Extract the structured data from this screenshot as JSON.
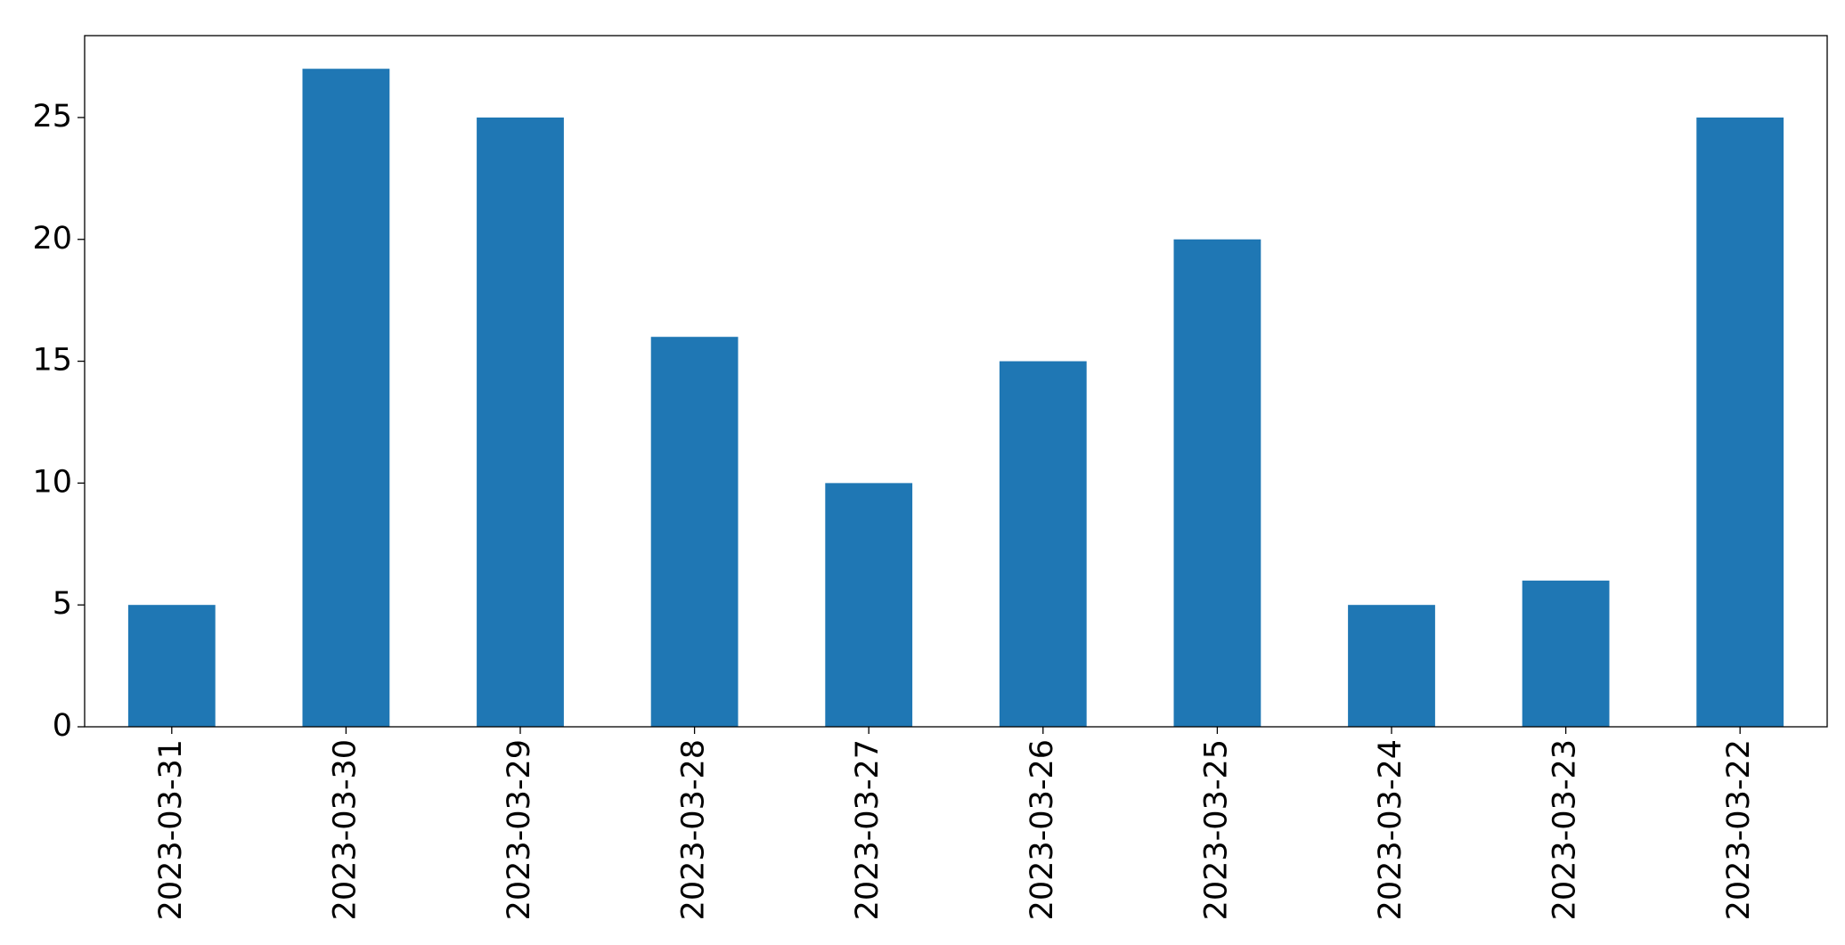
{
  "chart_data": {
    "type": "bar",
    "categories": [
      "2023-03-31",
      "2023-03-30",
      "2023-03-29",
      "2023-03-28",
      "2023-03-27",
      "2023-03-26",
      "2023-03-25",
      "2023-03-24",
      "2023-03-23",
      "2023-03-22"
    ],
    "values": [
      5,
      27,
      25,
      16,
      10,
      15,
      20,
      5,
      6,
      25
    ],
    "color": "#1f77b4",
    "ylim": [
      0,
      28.36
    ],
    "yticks": [
      0,
      5,
      10,
      15,
      20,
      25
    ],
    "grid": false
  }
}
